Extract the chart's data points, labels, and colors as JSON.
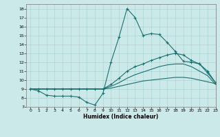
{
  "xlabel": "Humidex (Indice chaleur)",
  "xlim": [
    -0.5,
    23
  ],
  "ylim": [
    7,
    18.5
  ],
  "xticks": [
    0,
    1,
    2,
    3,
    4,
    5,
    6,
    7,
    8,
    9,
    10,
    11,
    12,
    13,
    14,
    15,
    16,
    17,
    18,
    19,
    20,
    21,
    22,
    23
  ],
  "yticks": [
    7,
    8,
    9,
    10,
    11,
    12,
    13,
    14,
    15,
    16,
    17,
    18
  ],
  "bg_color": "#cce9e9",
  "line_color": "#1a6e6e",
  "grid_color": "#aad4d4",
  "line1_y": [
    9.0,
    8.8,
    8.3,
    8.2,
    8.2,
    8.2,
    8.1,
    7.5,
    7.2,
    8.5,
    12.0,
    14.8,
    18.0,
    17.0,
    15.0,
    15.2,
    15.1,
    14.2,
    13.2,
    12.1,
    12.0,
    11.8,
    10.8,
    9.7
  ],
  "line2_y": [
    9.0,
    9.0,
    9.0,
    9.0,
    9.0,
    9.0,
    9.0,
    9.0,
    9.0,
    9.0,
    9.5,
    10.2,
    11.0,
    11.5,
    11.8,
    12.2,
    12.5,
    12.8,
    13.0,
    12.8,
    12.2,
    11.8,
    11.0,
    9.7
  ],
  "line3_y": [
    9.0,
    9.0,
    9.0,
    9.0,
    9.0,
    9.0,
    9.0,
    9.0,
    9.0,
    9.0,
    9.3,
    9.7,
    10.2,
    10.6,
    10.9,
    11.2,
    11.5,
    11.7,
    11.8,
    11.8,
    11.5,
    11.0,
    10.5,
    9.5
  ],
  "line4_y": [
    9.0,
    9.0,
    9.0,
    9.0,
    9.0,
    9.0,
    9.0,
    9.0,
    9.0,
    9.0,
    9.1,
    9.3,
    9.5,
    9.7,
    9.9,
    10.0,
    10.1,
    10.2,
    10.3,
    10.3,
    10.2,
    10.0,
    9.8,
    9.6
  ]
}
